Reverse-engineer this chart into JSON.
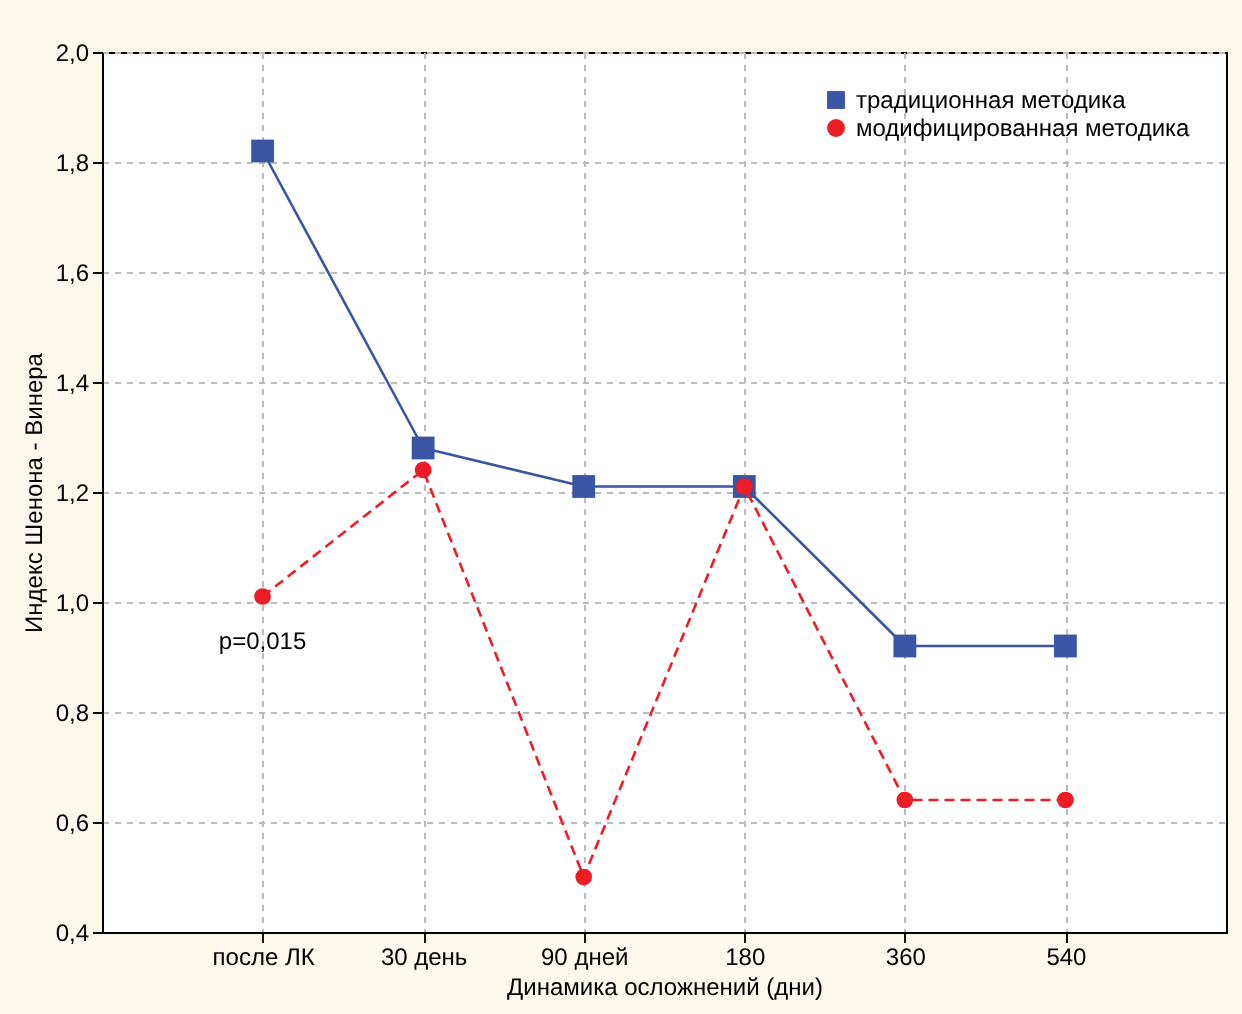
{
  "chart_data": {
    "type": "line",
    "xlabel": "Динамика осложнений (дни)",
    "ylabel": "Индекс Шенона - Винера",
    "categories": [
      "после ЛК",
      "30 день",
      "90 дней",
      "180",
      "360",
      "540"
    ],
    "series": [
      {
        "name": "традиционная методика",
        "color": "#3a55a4",
        "values": [
          1.82,
          1.28,
          1.21,
          1.21,
          0.92,
          0.92
        ],
        "marker": "square",
        "line_style": "solid"
      },
      {
        "name": "модифицированная методика",
        "color": "#ee1c25",
        "values": [
          1.01,
          1.24,
          0.5,
          1.21,
          0.64,
          0.64
        ],
        "marker": "circle",
        "line_style": "dashed"
      }
    ],
    "ylim": [
      0.4,
      2.0
    ],
    "yticks": [
      {
        "value": 0.4,
        "label": "0,4"
      },
      {
        "value": 0.6,
        "label": "0,6"
      },
      {
        "value": 0.8,
        "label": "0,8"
      },
      {
        "value": 1.0,
        "label": "1,0"
      },
      {
        "value": 1.2,
        "label": "1,2"
      },
      {
        "value": 1.4,
        "label": "1,4"
      },
      {
        "value": 1.6,
        "label": "1,6"
      },
      {
        "value": 1.8,
        "label": "1,8"
      },
      {
        "value": 2.0,
        "label": "2,0"
      }
    ],
    "annotations": [
      "p=0,015"
    ],
    "grid": true,
    "legend": "top right"
  }
}
